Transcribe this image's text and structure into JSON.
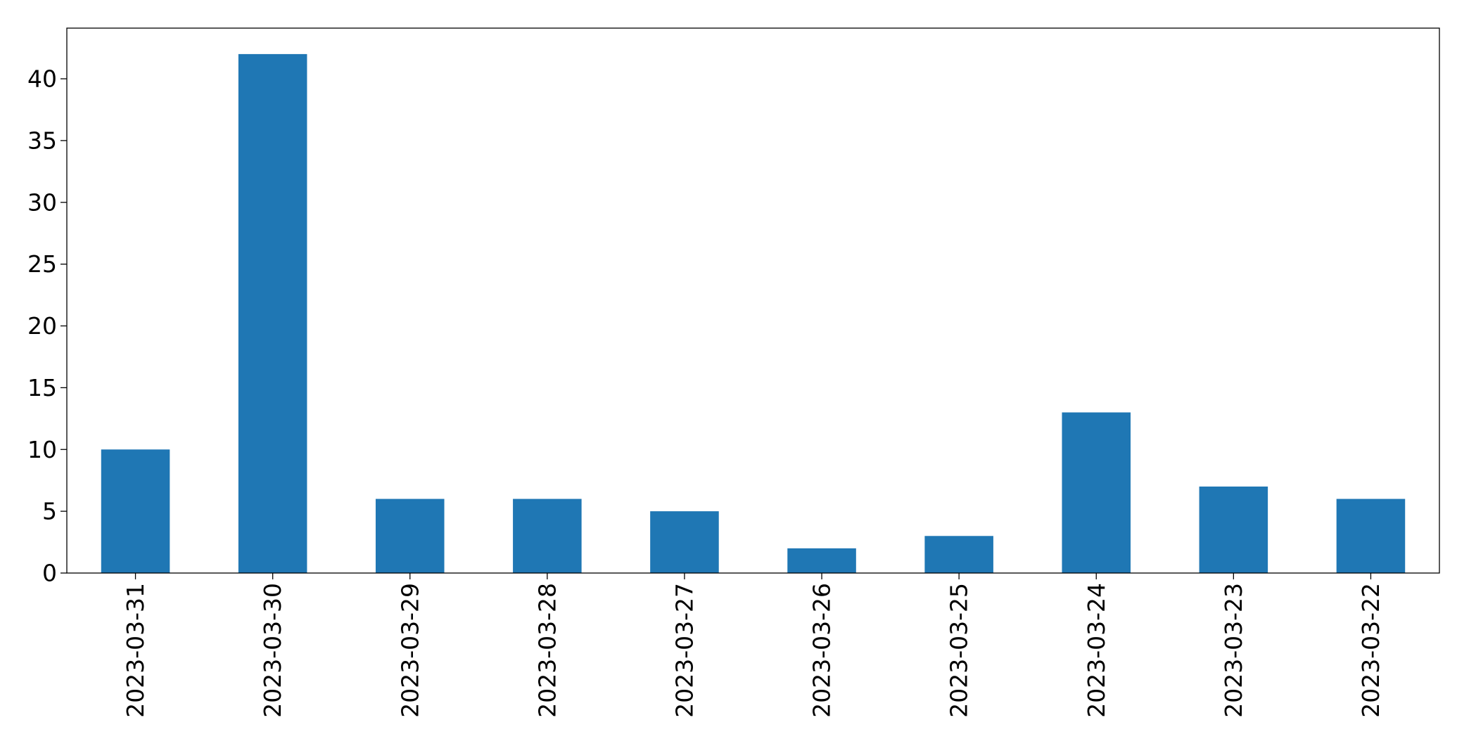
{
  "chart_data": {
    "type": "bar",
    "title": "",
    "xlabel": "",
    "ylabel": "",
    "categories": [
      "2023-03-31",
      "2023-03-30",
      "2023-03-29",
      "2023-03-28",
      "2023-03-27",
      "2023-03-26",
      "2023-03-25",
      "2023-03-24",
      "2023-03-23",
      "2023-03-22"
    ],
    "series": [
      {
        "values": [
          10,
          42,
          6,
          6,
          5,
          2,
          3,
          13,
          7,
          6
        ],
        "color": "#1f77b4"
      }
    ],
    "ylim": [
      0,
      44.1
    ],
    "yticks": [
      "0",
      "5",
      "10",
      "15",
      "20",
      "25",
      "30",
      "35",
      "40"
    ],
    "grid": false,
    "legend": "none"
  }
}
